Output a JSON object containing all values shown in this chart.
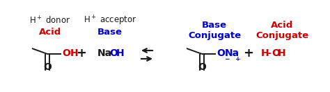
{
  "bg_color": "#ffffff",
  "fig_width": 4.74,
  "fig_height": 1.33,
  "dpi": 100,
  "black": "#1a1a1a",
  "red": "#cc0000",
  "blue": "#0000cc",
  "acid_label": "Acid",
  "acid_color": "#cc0000",
  "acid_sublabel": "H$^+$ donor",
  "base_label": "Base",
  "base_color": "#0000cc",
  "base_sublabel": "H$^+$ acceptor",
  "conj_base_color": "#0000cc",
  "conj_acid_color": "#cc0000"
}
